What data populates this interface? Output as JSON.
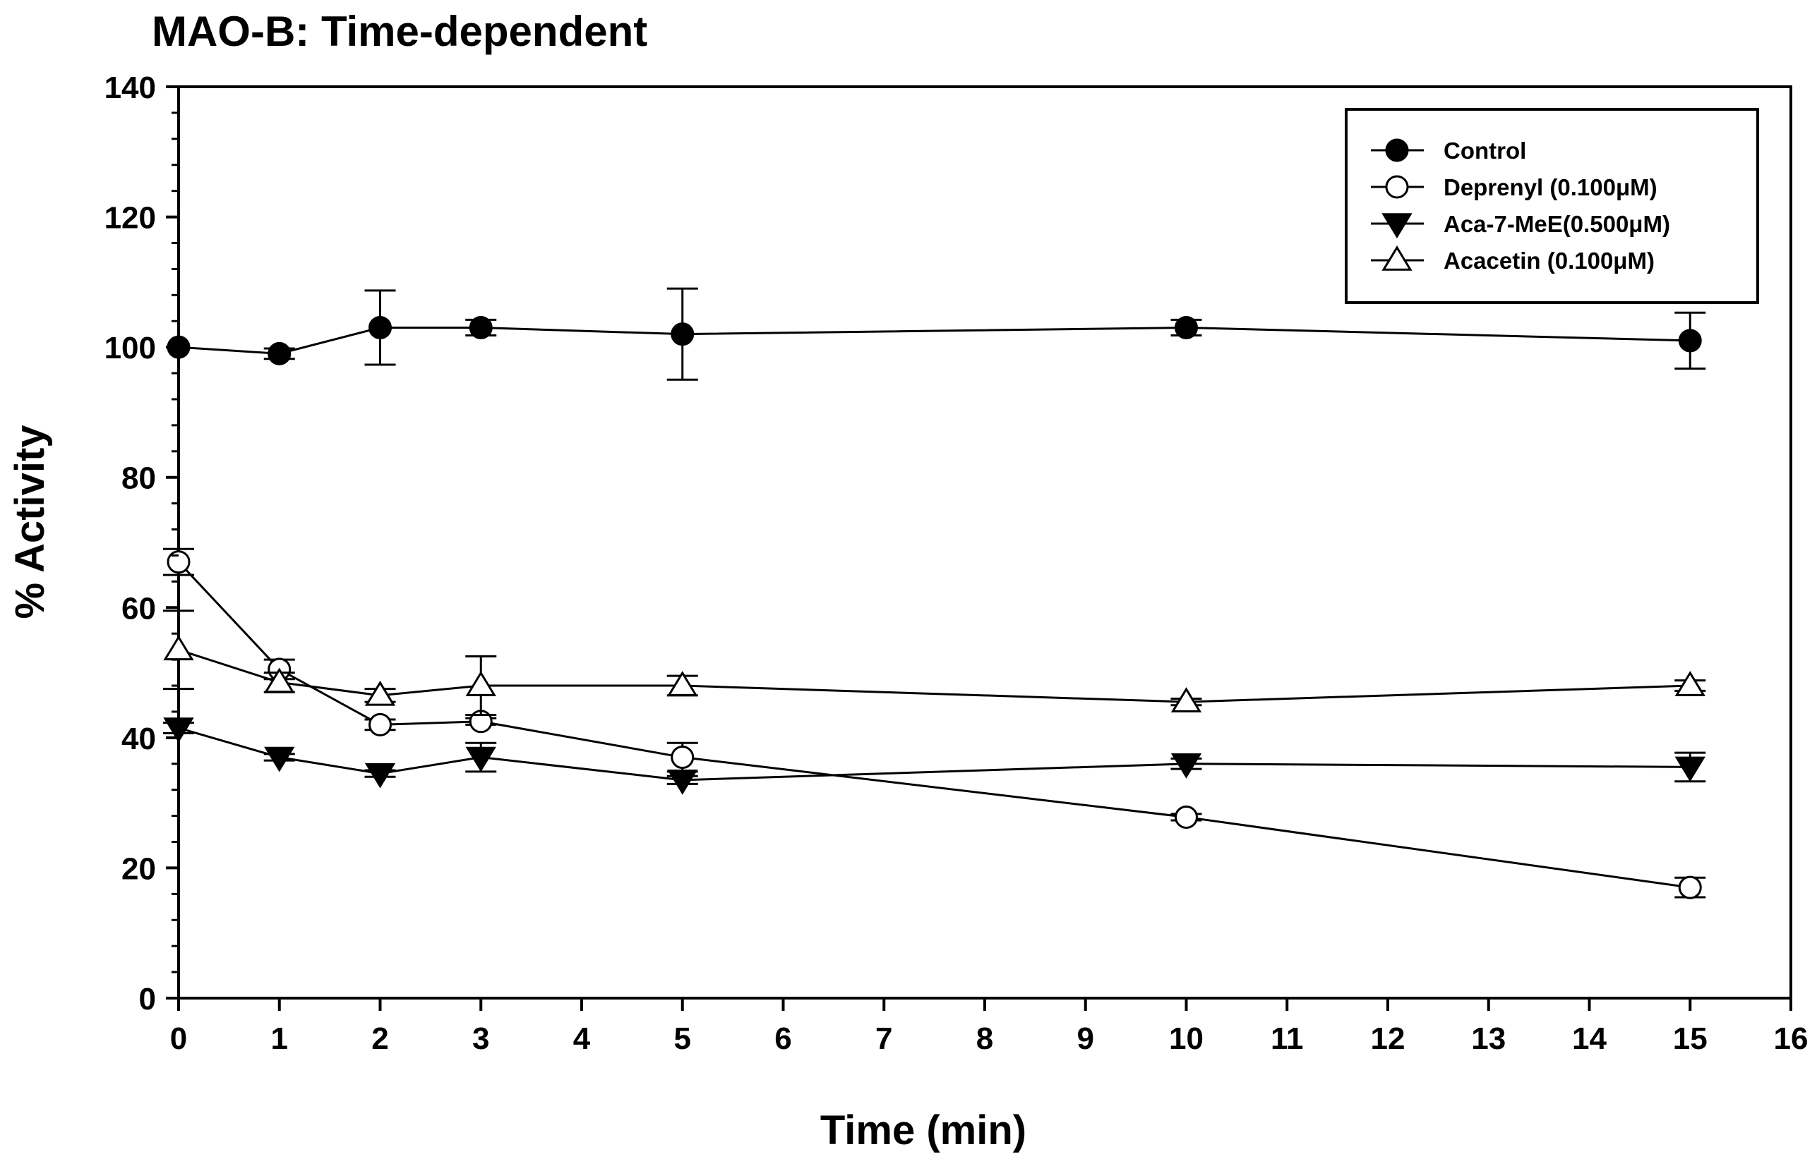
{
  "chart_data": {
    "type": "line",
    "title": "MAO-B: Time-dependent",
    "xlabel": "Time (min)",
    "ylabel": "% Activity",
    "xlim": [
      0,
      16
    ],
    "ylim": [
      0,
      140
    ],
    "xticks": [
      0,
      1,
      2,
      3,
      4,
      5,
      6,
      7,
      8,
      9,
      10,
      11,
      12,
      13,
      14,
      15,
      16
    ],
    "yticks": [
      0,
      20,
      40,
      60,
      80,
      100,
      120,
      140
    ],
    "x": [
      0,
      1,
      2,
      3,
      5,
      10,
      15
    ],
    "legend_position": "top-right",
    "series": [
      {
        "name": "Control",
        "marker": "filled-circle",
        "values": [
          100,
          99,
          103,
          103,
          102,
          103,
          101
        ],
        "errors": [
          0,
          0.8,
          5.7,
          1.2,
          7,
          1.2,
          4.3
        ]
      },
      {
        "name": "Deprenyl (0.100μM)",
        "marker": "open-circle",
        "values": [
          67,
          50.5,
          42,
          42.5,
          37,
          27.8,
          17
        ],
        "errors": [
          2,
          1.5,
          0.8,
          0.5,
          2.2,
          0.5,
          1.5
        ]
      },
      {
        "name": "Aca-7-MeE(0.500μM)",
        "marker": "filled-triangle-down",
        "values": [
          41.5,
          37,
          34.5,
          37,
          33.5,
          36,
          35.5
        ],
        "errors": [
          0.8,
          0.5,
          0.5,
          2.2,
          0.6,
          0.8,
          2.2
        ]
      },
      {
        "name": "Acacetin (0.100μM)",
        "marker": "open-triangle-up",
        "values": [
          53.5,
          48.5,
          46.5,
          48,
          48,
          45.5,
          48
        ],
        "errors": [
          6,
          1.5,
          1,
          4.5,
          1.5,
          0.5,
          0.8
        ]
      }
    ]
  }
}
